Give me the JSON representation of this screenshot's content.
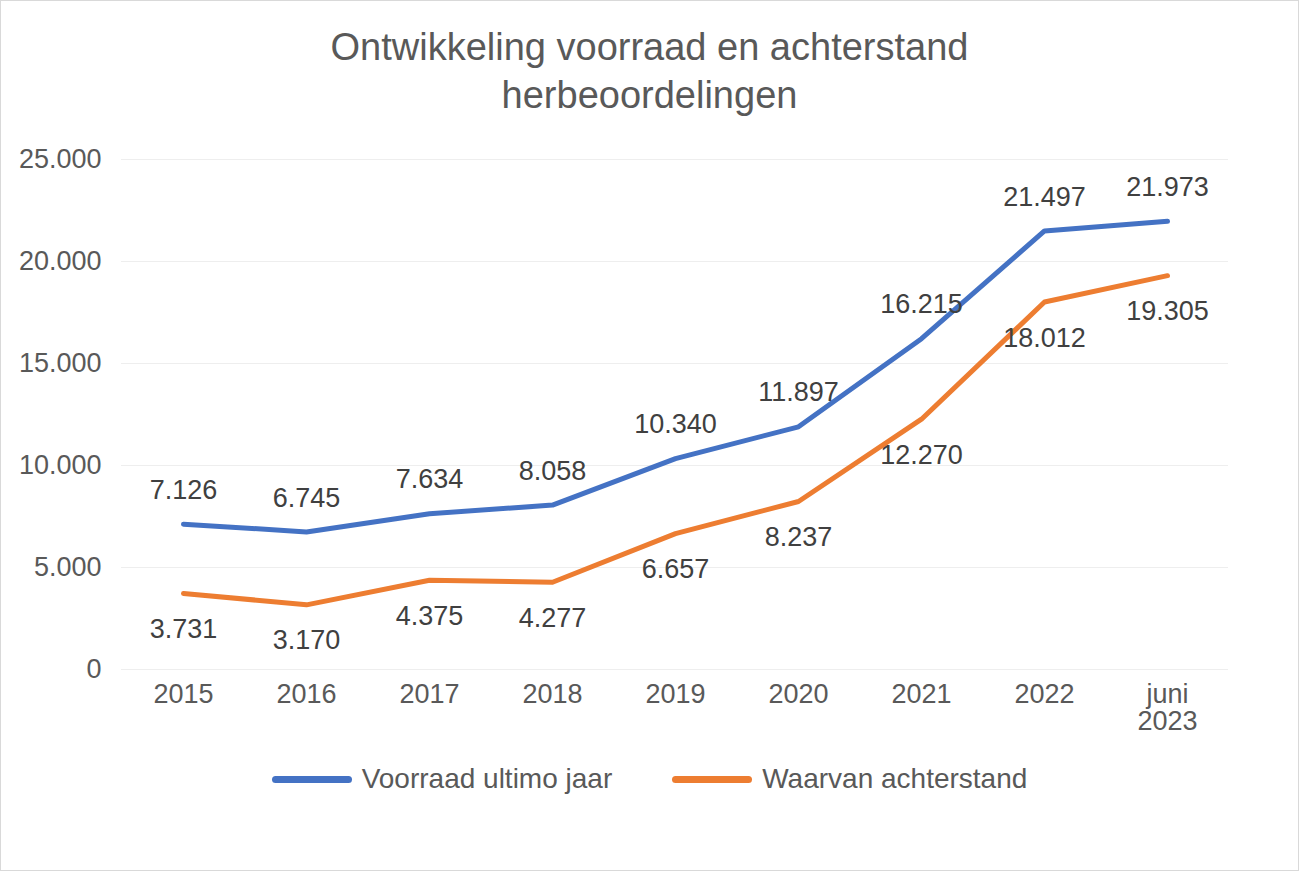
{
  "chart_data": {
    "type": "line",
    "title": "Ontwikkeling voorraad en achterstand herbeoordelingen",
    "categories": [
      "2015",
      "2016",
      "2017",
      "2018",
      "2019",
      "2020",
      "2021",
      "2022",
      "juni 2023"
    ],
    "series": [
      {
        "name": "Voorraad ultimo jaar",
        "color": "#4472c4",
        "values": [
          7126,
          6745,
          7634,
          8058,
          10340,
          11897,
          16215,
          21497,
          21973
        ],
        "value_labels": [
          "7.126",
          "6.745",
          "7.634",
          "8.058",
          "10.340",
          "11.897",
          "16.215",
          "21.497",
          "21.973"
        ]
      },
      {
        "name": "Waarvan achterstand",
        "color": "#ed7d31",
        "values": [
          3731,
          3170,
          4375,
          4277,
          6657,
          8237,
          12270,
          18012,
          19305
        ],
        "value_labels": [
          "3.731",
          "3.170",
          "4.375",
          "4.277",
          "6.657",
          "8.237",
          "12.270",
          "18.012",
          "19.305"
        ]
      }
    ],
    "ylim": [
      0,
      25000
    ],
    "yticks": [
      0,
      {
        "value": 5000,
        "label": "5.000"
      },
      {
        "value": 10000,
        "label": "10.000"
      },
      {
        "value": 15000,
        "label": "15.000"
      },
      {
        "value": 20000,
        "label": "20.000"
      },
      {
        "value": 25000,
        "label": "25.000"
      }
    ],
    "grid": true,
    "data_labels": true,
    "legend": "bottom"
  }
}
